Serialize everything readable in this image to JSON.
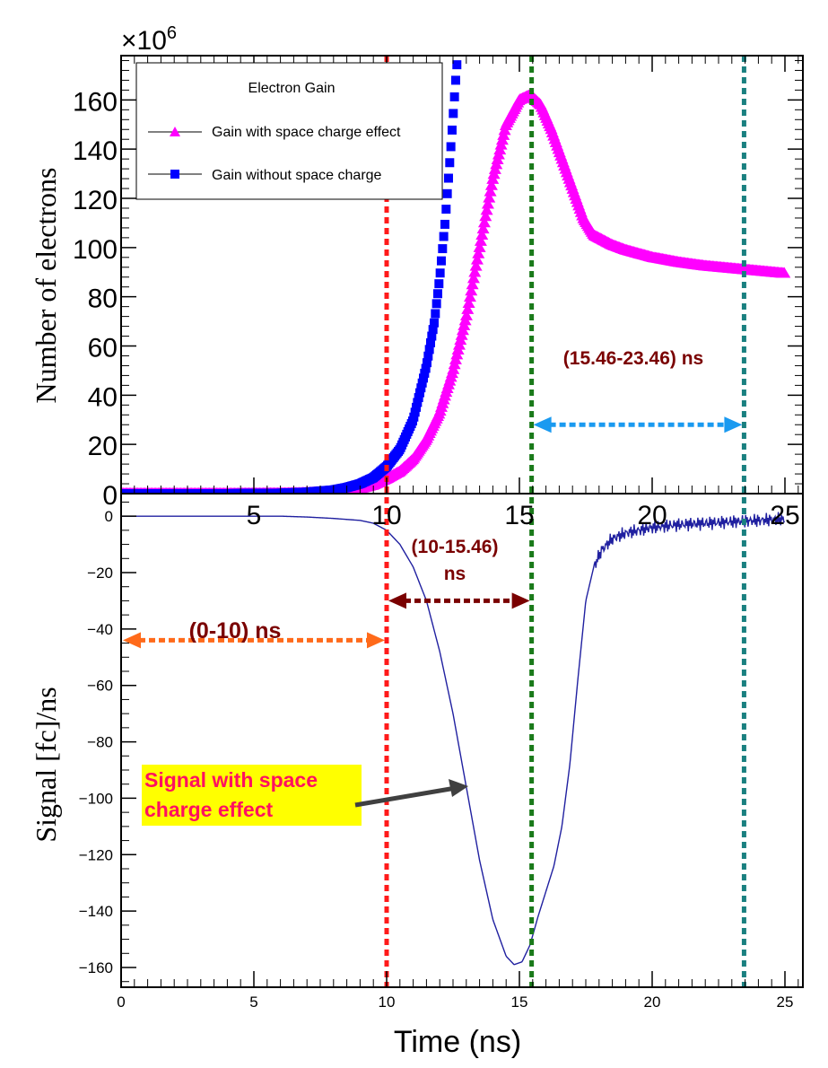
{
  "chart_data": [
    {
      "panel": "top",
      "type": "line",
      "ylabel": "Number  of  electrons",
      "y_multiplier_base": "×10",
      "y_multiplier_exp": "6",
      "ylim": [
        0,
        178
      ],
      "xlim": [
        0,
        25.5
      ],
      "x_ticks": [
        5,
        10,
        15,
        20,
        25
      ],
      "y_ticks": [
        0,
        20,
        40,
        60,
        80,
        100,
        120,
        140,
        160
      ],
      "legend": {
        "title": "Electron Gain",
        "position": "top-left",
        "entries": [
          "Gain with space charge effect",
          "Gain without space charge"
        ]
      },
      "series": [
        {
          "name": "Gain with space charge effect",
          "color": "#ff00ff",
          "marker": "triangle",
          "x": [
            0,
            2,
            4,
            6,
            7,
            8,
            9,
            9.5,
            10,
            10.5,
            11,
            11.5,
            12,
            12.5,
            13,
            13.5,
            14,
            14.5,
            15,
            15.4,
            15.8,
            16.2,
            16.6,
            17,
            17.4,
            17.8,
            18.5,
            19,
            20,
            21,
            22,
            23,
            24,
            25
          ],
          "y": [
            0,
            0,
            0,
            0.1,
            0.3,
            0.8,
            2,
            3.5,
            6,
            9,
            14,
            22,
            33,
            50,
            72,
            100,
            128,
            150,
            160,
            162,
            158,
            148,
            136,
            124,
            112,
            105,
            101,
            99,
            96,
            94,
            92.5,
            91.5,
            90.5,
            89.5
          ]
        },
        {
          "name": "Gain without space charge",
          "color": "#0000ff",
          "marker": "square",
          "x": [
            0,
            2,
            4,
            6,
            7,
            8,
            8.5,
            9,
            9.5,
            10,
            10.5,
            11,
            11.5,
            11.8,
            12,
            12.2,
            12.4,
            12.6,
            12.7
          ],
          "y": [
            0,
            0,
            0,
            0.2,
            0.6,
            1.5,
            2.5,
            4,
            6.5,
            11,
            18,
            30,
            52,
            70,
            88,
            110,
            138,
            168,
            182
          ]
        }
      ],
      "annotations": [
        {
          "label": "(15.46-23.46) ns",
          "color": "#7a0000"
        }
      ]
    },
    {
      "panel": "bottom",
      "type": "line",
      "title": "",
      "xlabel": "Time (ns)",
      "ylabel": "Signal  [fc]/ns",
      "xlim": [
        0,
        25.5
      ],
      "ylim": [
        -167,
        8
      ],
      "x_ticks": [
        0,
        5,
        10,
        15,
        20,
        25
      ],
      "y_ticks": [
        0,
        -20,
        -40,
        -60,
        -80,
        -100,
        -120,
        -140,
        -160
      ],
      "series": [
        {
          "name": "Signal with space charge effect",
          "color": "#2020a0",
          "x": [
            0,
            2,
            4,
            6,
            7,
            8,
            9,
            9.5,
            10,
            10.5,
            11,
            11.5,
            12,
            12.5,
            13,
            13.5,
            14,
            14.5,
            14.8,
            15.1,
            15.4,
            15.7,
            16,
            16.3,
            16.6,
            16.9,
            17.2,
            17.5,
            17.8,
            18.1,
            18.5,
            19,
            19.5,
            20,
            21,
            22,
            23,
            24,
            25
          ],
          "y": [
            0,
            0,
            0,
            0,
            -0.3,
            -0.8,
            -1.5,
            -2.5,
            -5,
            -10,
            -18,
            -30,
            -48,
            -70,
            -96,
            -122,
            -143,
            -156,
            -159,
            -158,
            -152,
            -142,
            -133,
            -124,
            -110,
            -88,
            -58,
            -30,
            -18,
            -12,
            -8,
            -6,
            -5,
            -4,
            -3,
            -2.5,
            -2,
            -1.5,
            -1
          ]
        }
      ],
      "annotations": [
        {
          "label": "(0-10) ns",
          "color": "#7a0000"
        },
        {
          "label_line1": "(10-15.46)",
          "label_line2": "ns",
          "color": "#7a0000"
        },
        {
          "label_line1": "Signal with space",
          "label_line2": "charge effect",
          "color": "#ff1060",
          "background": "#ffff00"
        }
      ]
    }
  ],
  "markers": {
    "vlines": [
      {
        "name": "t=10 ns",
        "x": 10,
        "color": "#ff1a1a"
      },
      {
        "name": "t=15.46 ns",
        "x": 15.46,
        "color": "#1a7a1a"
      },
      {
        "name": "t=23.46 ns",
        "x": 23.46,
        "color": "#1a8080"
      }
    ],
    "arrows": [
      {
        "name": "span 0-10",
        "from": 0,
        "to": 10,
        "panel": "bottom",
        "y": -44,
        "color": "#ff6a1a"
      },
      {
        "name": "span 10-15.46",
        "from": 10,
        "to": 15.46,
        "panel": "bottom",
        "y": -30,
        "color": "#7a0000"
      },
      {
        "name": "span 15.46-23.46",
        "from": 15.46,
        "to": 23.46,
        "panel": "top",
        "y": 28,
        "color": "#1a9af0"
      }
    ]
  }
}
